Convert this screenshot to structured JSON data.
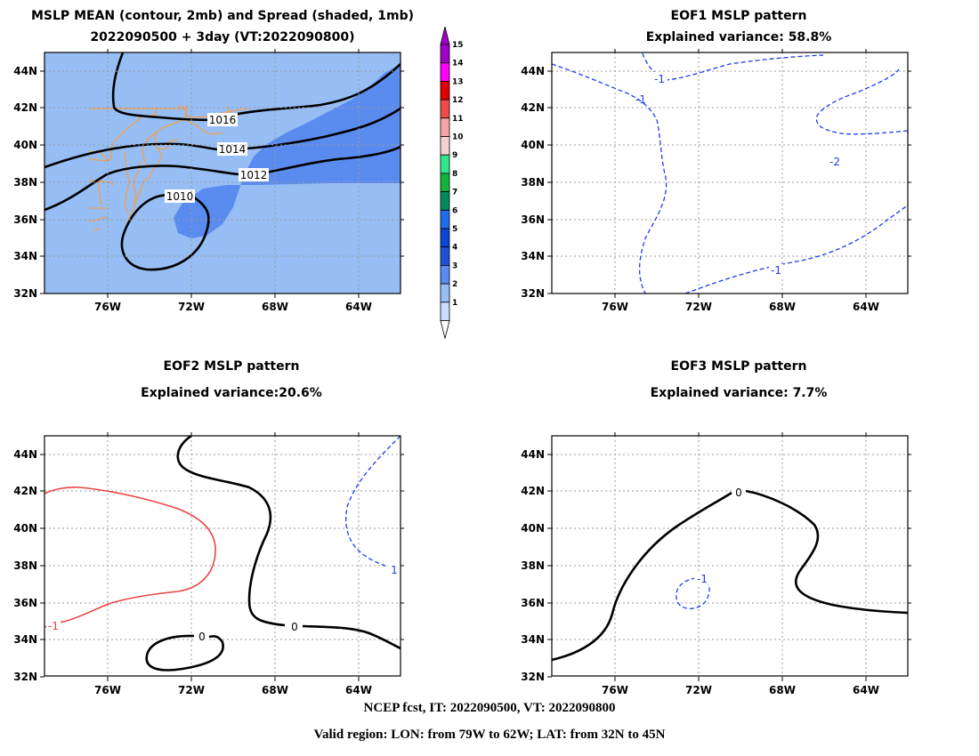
{
  "panels": {
    "mean": {
      "title1": "MSLP MEAN (contour, 2mb) and Spread (shaded, 1mb)",
      "title2": "2022090500 + 3day (VT:2022090800)",
      "contour_labels": [
        "1016",
        "1014",
        "1012",
        "1010"
      ]
    },
    "eof1": {
      "title1": "EOF1 MSLP pattern",
      "title2": "Explained variance: 58.8%",
      "contour_labels": [
        "-1",
        "-1",
        "-2",
        "-1"
      ]
    },
    "eof2": {
      "title1": "EOF2 MSLP pattern",
      "title2": "Explained variance:20.6%",
      "contour_labels": [
        "-1",
        "1",
        "0",
        "0"
      ]
    },
    "eof3": {
      "title1": "EOF3 MSLP pattern",
      "title2": "Explained variance: 7.7%",
      "contour_labels": [
        "0",
        "-1"
      ]
    }
  },
  "axes": {
    "lat_labels": [
      "44N",
      "42N",
      "40N",
      "38N",
      "36N",
      "34N",
      "32N"
    ],
    "lon_labels": [
      "76W",
      "72W",
      "68W",
      "64W"
    ]
  },
  "colorbar": {
    "labels": [
      "15",
      "14",
      "13",
      "12",
      "11",
      "10",
      "9",
      "8",
      "7",
      "6",
      "5",
      "4",
      "3",
      "2",
      "1"
    ],
    "colors": [
      "#a000c8",
      "#ff00ff",
      "#e10000",
      "#f04b4b",
      "#f5a5a5",
      "#f5d2d2",
      "#32e68c",
      "#14b43c",
      "#008c5a",
      "#1e6eeb",
      "#0a46d2",
      "#1e50d2",
      "#5a8cf0",
      "#96bef5",
      "#c8dcff"
    ]
  },
  "footer": {
    "line1": "NCEP fcst, IT: 2022090500, VT: 2022090800",
    "line2": "Valid region: LON: from 79W to 62W; LAT: from 32N to 45N"
  }
}
